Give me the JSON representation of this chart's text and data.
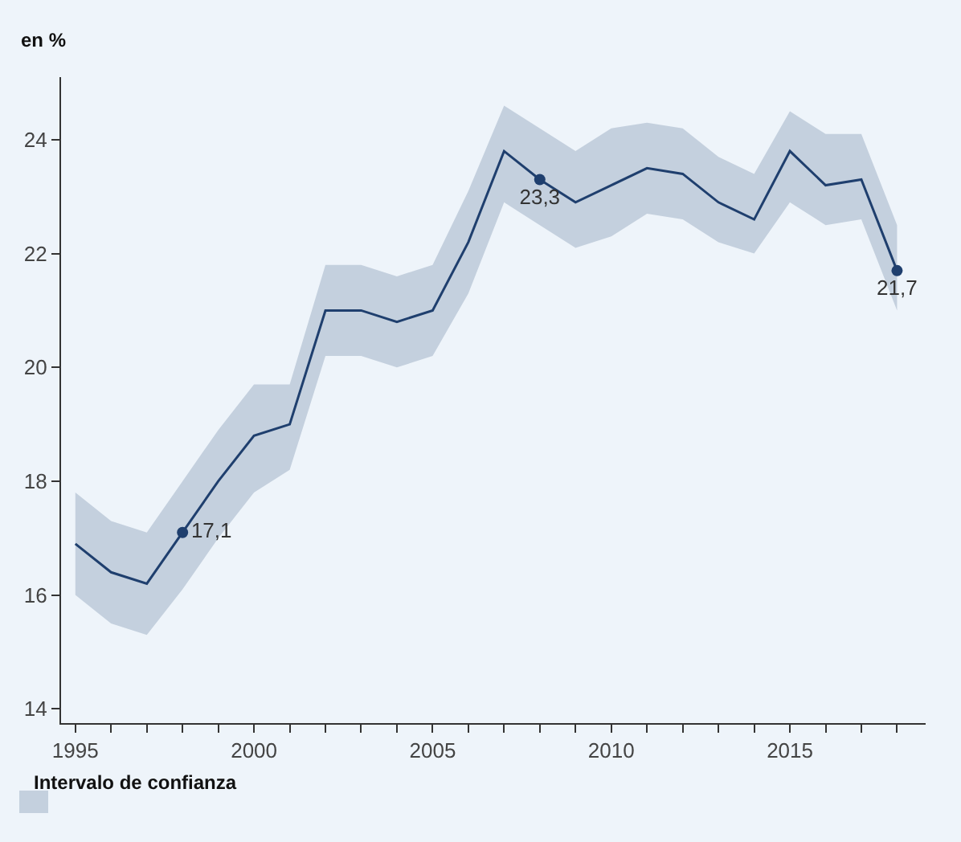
{
  "chart_data": {
    "type": "line",
    "ylabel": "en %",
    "legend_title": "Intervalo de confianza",
    "grid": false,
    "x": [
      1995,
      1996,
      1997,
      1998,
      1999,
      2000,
      2001,
      2002,
      2003,
      2004,
      2005,
      2006,
      2007,
      2008,
      2009,
      2010,
      2011,
      2012,
      2013,
      2014,
      2015,
      2016,
      2017,
      2018
    ],
    "series": [
      {
        "color": "#1f3f6e",
        "values": [
          16.9,
          16.4,
          16.2,
          17.1,
          18.0,
          18.8,
          19.0,
          21.0,
          21.0,
          20.8,
          21.0,
          22.2,
          23.8,
          23.3,
          22.9,
          23.2,
          23.5,
          23.4,
          22.9,
          22.6,
          23.8,
          23.2,
          23.3,
          21.7
        ],
        "lower": [
          16.0,
          15.5,
          15.3,
          16.1,
          17.0,
          17.8,
          18.2,
          20.2,
          20.2,
          20.0,
          20.2,
          21.3,
          22.9,
          22.5,
          22.1,
          22.3,
          22.7,
          22.6,
          22.2,
          22.0,
          22.9,
          22.5,
          22.6,
          21.0
        ],
        "upper": [
          17.8,
          17.3,
          17.1,
          18.0,
          18.9,
          19.7,
          19.7,
          21.8,
          21.8,
          21.6,
          21.8,
          23.1,
          24.6,
          24.2,
          23.8,
          24.2,
          24.3,
          24.2,
          23.7,
          23.4,
          24.5,
          24.1,
          24.1,
          22.5
        ],
        "value_labels": [
          null,
          null,
          null,
          "17,1",
          null,
          null,
          null,
          null,
          null,
          null,
          null,
          null,
          null,
          "23,3",
          null,
          null,
          null,
          null,
          null,
          null,
          null,
          null,
          null,
          "21,7"
        ]
      }
    ],
    "xlim": [
      1994.6,
      2018.8
    ],
    "ylim": [
      13.75,
      25.1
    ],
    "xticks": [
      1995,
      {
        "value": 1996,
        "label": null
      },
      {
        "value": 1997,
        "label": null
      },
      {
        "value": 1998,
        "label": null
      },
      {
        "value": 1999,
        "label": null
      },
      2000,
      {
        "value": 2001,
        "label": null
      },
      {
        "value": 2002,
        "label": null
      },
      {
        "value": 2003,
        "label": null
      },
      {
        "value": 2004,
        "label": null
      },
      2005,
      {
        "value": 2006,
        "label": null
      },
      {
        "value": 2007,
        "label": null
      },
      {
        "value": 2008,
        "label": null
      },
      {
        "value": 2009,
        "label": null
      },
      2010,
      {
        "value": 2011,
        "label": null
      },
      {
        "value": 2012,
        "label": null
      },
      {
        "value": 2013,
        "label": null
      },
      {
        "value": 2014,
        "label": null
      },
      2015,
      {
        "value": 2016,
        "label": null
      },
      {
        "value": 2017,
        "label": null
      },
      {
        "value": 2018,
        "label": null
      }
    ],
    "yticks": [
      14,
      16,
      18,
      20,
      22,
      24
    ]
  }
}
